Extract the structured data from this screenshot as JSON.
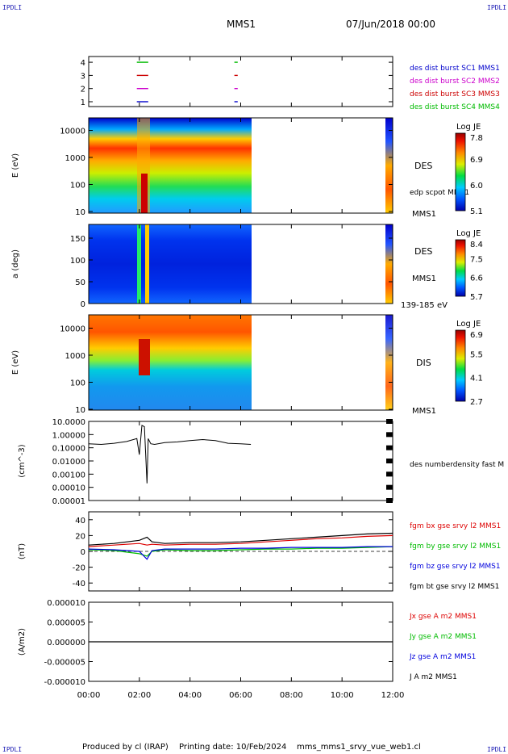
{
  "header": {
    "mission": "MMS1",
    "datetime": "07/Jun/2018 00:00",
    "corner_left": "IPDLI",
    "corner_right": "IPDLI"
  },
  "footer": {
    "producer": "Produced by cl (IRAP)",
    "printing": "Printing date: 10/Feb/2024",
    "file": "mms_mms1_srvy_vue_web1.cl",
    "corner_left": "IPDLI",
    "corner_right": "IPDLI"
  },
  "time_axis": {
    "ticks": [
      "00:00",
      "02:00",
      "04:00",
      "06:00",
      "08:00",
      "10:00",
      "12:00"
    ]
  },
  "colors": {
    "sc1": "#0000cc",
    "sc2": "#cc00cc",
    "sc3": "#cc0000",
    "sc4": "#00bb00",
    "bx": "#dd0000",
    "by": "#00bb00",
    "bz": "#0000dd",
    "bt": "#000000"
  },
  "chart_data": [
    {
      "type": "bar",
      "panel": "burst-availability",
      "yticks": [
        "1",
        "2",
        "3",
        "4"
      ],
      "legend": [
        {
          "label": "des dist burst SC1 MMS1",
          "color": "#0000cc"
        },
        {
          "label": "des dist burst SC2 MMS2",
          "color": "#cc00cc"
        },
        {
          "label": "des dist burst SC3 MMS3",
          "color": "#cc0000"
        },
        {
          "label": "des dist burst SC4 MMS4",
          "color": "#00bb00"
        }
      ],
      "intervals_hours": [
        [
          1.9,
          2.35
        ],
        [
          5.75,
          5.85
        ]
      ]
    },
    {
      "type": "heatmap",
      "panel": "des-energy",
      "ylabel": "E (eV)",
      "yticks": [
        "10",
        "100",
        "1000",
        "10000"
      ],
      "label": "DES",
      "extra_label": "edp scpot MMS1",
      "bottom_label": "MMS1",
      "colorbar": {
        "title": "Log JE",
        "ticks": [
          "7.8",
          "6.9",
          "6.0",
          "5.1"
        ]
      },
      "coverage_hours": [
        [
          0,
          6.4
        ],
        [
          11.75,
          12
        ]
      ]
    },
    {
      "type": "heatmap",
      "panel": "des-pitch-angle",
      "ylabel": "a (deg)",
      "yticks": [
        "0",
        "50",
        "100",
        "150"
      ],
      "label": "DES",
      "extra_label": "MMS1",
      "bottom_label": "139-185 eV",
      "colorbar": {
        "title": "Log JE",
        "ticks": [
          "8.4",
          "7.5",
          "6.6",
          "5.7"
        ]
      },
      "coverage_hours": [
        [
          0,
          6.4
        ],
        [
          11.75,
          12
        ]
      ]
    },
    {
      "type": "heatmap",
      "panel": "dis-energy",
      "ylabel": "E (eV)",
      "yticks": [
        "10",
        "100",
        "1000",
        "10000"
      ],
      "label": "DIS",
      "bottom_label": "MMS1",
      "colorbar": {
        "title": "Log JE",
        "ticks": [
          "6.9",
          "5.5",
          "4.1",
          "2.7"
        ]
      },
      "coverage_hours": [
        [
          0,
          6.4
        ],
        [
          11.75,
          12
        ]
      ]
    },
    {
      "type": "line",
      "panel": "density",
      "ylabel": "(cm^-3)",
      "yticks": [
        "10.0000",
        "1.00000",
        "0.10000",
        "0.01000",
        "0.00100",
        "0.00010",
        "0.00001"
      ],
      "legend": [
        {
          "label": "des numberdensity fast M",
          "color": "#000000"
        }
      ],
      "series": [
        {
          "x": [
            0,
            0.5,
            1.0,
            1.5,
            1.9,
            2.0,
            2.1,
            2.2,
            2.3,
            2.35,
            2.45,
            2.6,
            3.0,
            3.5,
            4.0,
            4.5,
            5.0,
            5.5,
            6.0,
            6.4,
            11.75,
            11.85,
            12
          ],
          "y": [
            0.2,
            0.18,
            0.22,
            0.3,
            0.5,
            0.03,
            5.0,
            4.0,
            0.0002,
            0.5,
            0.2,
            0.18,
            0.25,
            0.28,
            0.35,
            0.42,
            0.35,
            0.22,
            0.2,
            0.18,
            1.0,
            1.3,
            1.0
          ]
        }
      ]
    },
    {
      "type": "line",
      "panel": "magnetic-field",
      "ylabel": "(nT)",
      "yticks": [
        "40",
        "20",
        "0",
        "-20",
        "-40"
      ],
      "ylim": [
        -50,
        50
      ],
      "legend": [
        {
          "label": "fgm bx gse srvy l2 MMS1",
          "color": "#dd0000"
        },
        {
          "label": "fgm by gse srvy l2 MMS1",
          "color": "#00bb00"
        },
        {
          "label": "fgm bz gse srvy l2 MMS1",
          "color": "#0000dd"
        },
        {
          "label": "fgm bt gse srvy l2 MMS1",
          "color": "#000000"
        }
      ],
      "x": [
        0,
        1,
        2,
        2.3,
        2.5,
        3,
        4,
        5,
        6,
        7,
        8,
        9,
        10,
        11,
        12
      ],
      "series": [
        {
          "values": [
            6,
            8,
            10,
            8,
            9,
            8,
            9,
            9,
            10,
            12,
            14,
            16,
            17,
            19,
            20
          ]
        },
        {
          "values": [
            2,
            1,
            -3,
            -6,
            0,
            2,
            1,
            1,
            2,
            3,
            3,
            4,
            4,
            5,
            6
          ]
        },
        {
          "values": [
            3,
            2,
            0,
            -10,
            1,
            3,
            3,
            3,
            4,
            4,
            5,
            5,
            5,
            6,
            6
          ]
        },
        {
          "values": [
            8,
            10,
            14,
            18,
            12,
            10,
            11,
            11,
            12,
            14,
            16,
            18,
            20,
            22,
            23
          ]
        }
      ]
    },
    {
      "type": "line",
      "panel": "current-density",
      "ylabel": "(A/m2)",
      "yticks": [
        "0.000010",
        "0.000005",
        "0.000000",
        "-0.000005",
        "-0.000010"
      ],
      "ylim": [
        -1e-05,
        1e-05
      ],
      "legend": [
        {
          "label": "Jx gse A m2 MMS1",
          "color": "#dd0000"
        },
        {
          "label": "Jy gse A m2 MMS1",
          "color": "#00bb00"
        },
        {
          "label": "Jz gse A m2 MMS1",
          "color": "#0000dd"
        },
        {
          "label": "J A m2 MMS1",
          "color": "#000000"
        }
      ],
      "x": [
        0,
        12
      ],
      "series": [
        {
          "values": [
            0,
            0
          ]
        }
      ]
    }
  ]
}
